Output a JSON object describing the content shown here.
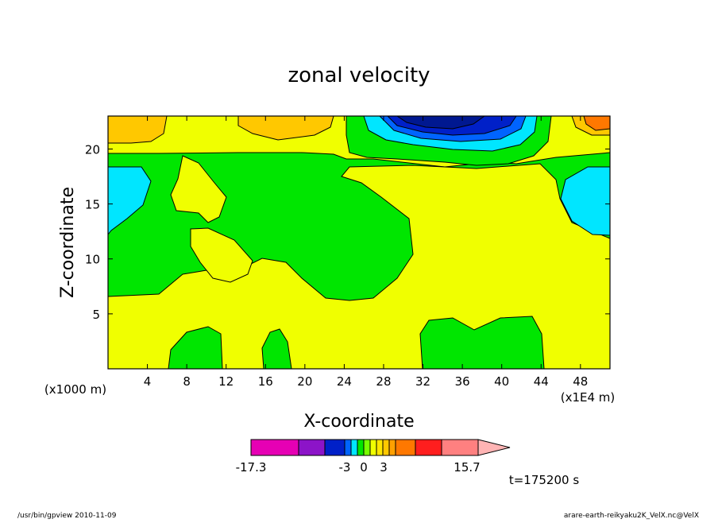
{
  "chart_data": {
    "type": "heatmap",
    "title": "zonal velocity",
    "xlabel": "X-coordinate",
    "ylabel": "Z-coordinate",
    "x_scale_note": "(x1E4 m)",
    "y_scale_note": "(x1000 m)",
    "x_ticks": [
      "4",
      "8",
      "12",
      "16",
      "20",
      "24",
      "28",
      "32",
      "36",
      "40",
      "44",
      "48"
    ],
    "y_ticks": [
      "5",
      "10",
      "15",
      "20"
    ],
    "xlim": [
      0,
      51
    ],
    "ylim": [
      0,
      23
    ],
    "colorbar": {
      "labels": [
        "-17.3",
        "-3",
        "0",
        "3",
        "15.7"
      ],
      "colors": [
        "#e600b4",
        "#8c14c8",
        "#0020c8",
        "#0064ff",
        "#00e6ff",
        "#00e600",
        "#78ff00",
        "#f0ff00",
        "#ffe600",
        "#ffc800",
        "#ffa000",
        "#ff7800",
        "#ff1e1e",
        "#ff8080",
        "#ffb4b4"
      ]
    },
    "time_label": "t=175200 s"
  },
  "footer": {
    "left": "/usr/bin/gpview   2010-11-09",
    "right": "arare-earth-reikyaku2K_VelX.nc@VelX"
  }
}
